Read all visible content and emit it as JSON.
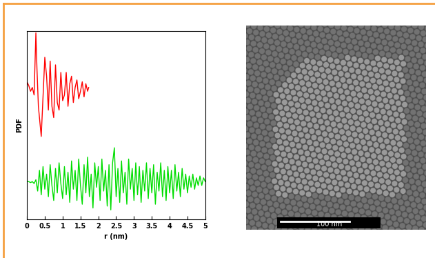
{
  "chart_data": {
    "type": "line",
    "x_label": "r (nm)",
    "y_label": "PDF",
    "xlim": [
      0,
      5
    ],
    "xticks": [
      0,
      0.5,
      1,
      1.5,
      2,
      2.5,
      3,
      3.5,
      4,
      4.5,
      5
    ],
    "ylim": [
      0,
      10
    ],
    "yticks": [],
    "tick_labels": "x",
    "grid": false,
    "series": [
      {
        "color": "#ff0000",
        "x": [
          0,
          0.05,
          0.1,
          0.15,
          0.2,
          0.25,
          0.28,
          0.32,
          0.36,
          0.4,
          0.45,
          0.5,
          0.55,
          0.6,
          0.65,
          0.7,
          0.75,
          0.8,
          0.85,
          0.9,
          0.95,
          1.0,
          1.05,
          1.1,
          1.15,
          1.2,
          1.25,
          1.3,
          1.35,
          1.4,
          1.45,
          1.5,
          1.55,
          1.6,
          1.65,
          1.7,
          1.73
        ],
        "values": [
          7.3,
          7.1,
          6.8,
          7.0,
          6.6,
          9.9,
          8.0,
          6.0,
          5.2,
          4.4,
          6.5,
          8.6,
          7.6,
          5.8,
          8.4,
          6.0,
          5.4,
          8.2,
          6.2,
          5.8,
          7.8,
          6.3,
          6.6,
          7.8,
          6.0,
          7.2,
          7.6,
          6.2,
          7.0,
          7.4,
          6.4,
          6.8,
          7.3,
          6.5,
          7.2,
          6.8,
          7.0
        ]
      },
      {
        "color": "#00dd00",
        "x": [
          0,
          0.05,
          0.1,
          0.15,
          0.2,
          0.25,
          0.3,
          0.35,
          0.4,
          0.45,
          0.5,
          0.55,
          0.6,
          0.65,
          0.7,
          0.75,
          0.8,
          0.85,
          0.9,
          0.95,
          1.0,
          1.05,
          1.1,
          1.15,
          1.2,
          1.25,
          1.3,
          1.35,
          1.4,
          1.45,
          1.5,
          1.55,
          1.6,
          1.65,
          1.7,
          1.75,
          1.8,
          1.85,
          1.9,
          1.95,
          2.0,
          2.05,
          2.1,
          2.15,
          2.2,
          2.25,
          2.3,
          2.35,
          2.4,
          2.45,
          2.5,
          2.55,
          2.6,
          2.65,
          2.7,
          2.75,
          2.8,
          2.85,
          2.9,
          2.95,
          3.0,
          3.05,
          3.1,
          3.15,
          3.2,
          3.25,
          3.3,
          3.35,
          3.4,
          3.45,
          3.5,
          3.55,
          3.6,
          3.65,
          3.7,
          3.75,
          3.8,
          3.85,
          3.9,
          3.95,
          4.0,
          4.05,
          4.1,
          4.15,
          4.2,
          4.25,
          4.3,
          4.35,
          4.4,
          4.45,
          4.5,
          4.55,
          4.6,
          4.65,
          4.7,
          4.75,
          4.8,
          4.85,
          4.9,
          4.95,
          5.0
        ],
        "values": [
          2.0,
          2.0,
          1.95,
          2.0,
          1.9,
          2.1,
          1.5,
          2.6,
          1.3,
          2.8,
          1.6,
          2.4,
          1.2,
          2.9,
          1.8,
          1.0,
          2.7,
          1.4,
          3.0,
          1.9,
          1.1,
          2.8,
          1.3,
          2.5,
          0.9,
          3.1,
          1.6,
          2.6,
          1.0,
          3.2,
          1.8,
          0.8,
          2.9,
          1.4,
          3.3,
          1.2,
          2.4,
          0.6,
          3.0,
          1.7,
          2.8,
          1.0,
          3.2,
          1.5,
          2.6,
          0.7,
          2.9,
          0.5,
          3.0,
          3.8,
          1.2,
          2.7,
          0.9,
          3.1,
          1.4,
          2.5,
          0.8,
          3.2,
          1.6,
          2.7,
          1.0,
          3.0,
          1.3,
          2.8,
          0.9,
          2.6,
          1.5,
          3.0,
          1.1,
          2.7,
          1.4,
          2.9,
          0.8,
          2.5,
          1.5,
          3.0,
          1.2,
          2.6,
          1.0,
          2.8,
          1.4,
          2.6,
          1.1,
          2.9,
          1.5,
          2.5,
          1.2,
          2.7,
          1.6,
          2.4,
          1.4,
          2.3,
          1.7,
          2.4,
          1.6,
          2.2,
          1.8,
          2.3,
          1.8,
          2.2,
          2.0
        ]
      }
    ]
  },
  "micrograph": {
    "scale_bar": "100 nm"
  }
}
